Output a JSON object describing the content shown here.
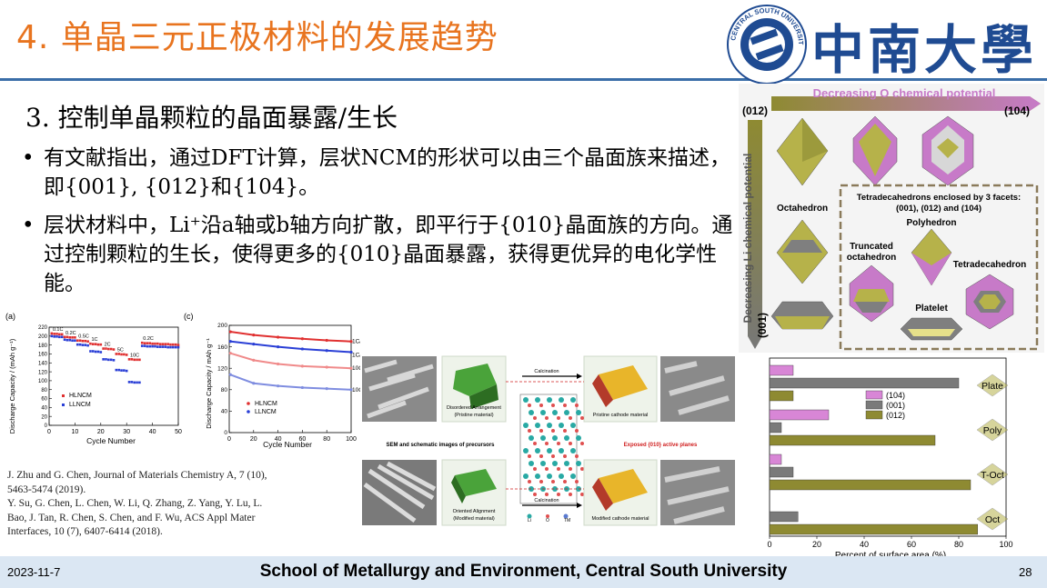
{
  "slide": {
    "title": "4. 单晶三元正极材料的发展趋势",
    "university_logo_text": "CENTRAL SOUTH UNIVERSITY",
    "university_name": "中南大學",
    "subtitle": "3. 控制单晶颗粒的晶面暴露/生长",
    "bullets": [
      "有文献指出，通过DFT计算，层状NCM的形状可以由三个晶面族来描述，即{001}, {012}和{104}。",
      "层状材料中，Li⁺沿a轴或b轴方向扩散，即平行于{010}晶面族的方向。通过控制颗粒的生长，使得更多的{010}晶面暴露，获得更优异的电化学性能。"
    ],
    "references": [
      "J. Zhu and G. Chen, Journal of Materials Chemistry A, 7 (10), 5463-5474 (2019).",
      "Y. Su, G. Chen, L. Chen, W. Li, Q. Zhang, Z. Yang, Y. Lu, L. Bao, J. Tan, R. Chen, S. Chen, and F. Wu, ACS Appl Mater Interfaces, 10 (7), 6407-6414 (2018)."
    ]
  },
  "footer": {
    "date": "2023-11-7",
    "school": "School of Metallurgy and Environment, Central South University",
    "page": "28"
  },
  "figure_shapes": {
    "top_arrow_label": "Decreasing O chemical potential",
    "left_arrow_label": "Decreasing Li chemical potential",
    "corner_012": "(012)",
    "corner_104": "(104)",
    "corner_001": "(001)",
    "octahedron": "Octahedron",
    "box_title_1": "Tetradecahedrons enclosed by 3 facets:",
    "box_title_2": "(001), (012) and (104)",
    "polyhedron": "Polyhedron",
    "truncated_1": "Truncated",
    "truncated_2": "octahedron",
    "tetradecahedron": "Tetradecahedron",
    "platelet": "Platelet",
    "colors": {
      "facet_012": "#9c9a3c",
      "facet_001": "#7f7f7f",
      "facet_104": "#c77ac8"
    }
  },
  "figure_process": {
    "disordered": "Disordered Arrangement",
    "pristine_material": "(Pristine material)",
    "calcination_1": "Calcination",
    "pristine_cathode": "Pristine cathode material",
    "sem_caption": "SEM and schematic images of precursors",
    "exposed_planes": "Exposed {010} active planes",
    "oriented": "Oriented Alignment",
    "modified_material": "(Modified material)",
    "calcination_2": "Calcination",
    "modified_cathode": "Modified cathode material",
    "atoms": [
      "Li",
      "O",
      "TM"
    ]
  },
  "chart_data": [
    {
      "type": "scatter",
      "panel": "(a)",
      "xlabel": "Cycle Number",
      "ylabel": "Discharge Capacity / (mAh g⁻¹)",
      "xlim": [
        0,
        50
      ],
      "ylim": [
        0,
        220
      ],
      "xticks": [
        "0",
        "10",
        "20",
        "30",
        "40",
        "50"
      ],
      "yticks": [
        "0",
        "20",
        "40",
        "60",
        "80",
        "100",
        "120",
        "140",
        "160",
        "180",
        "200",
        "220"
      ],
      "rate_labels": [
        "0.1C",
        "0.2C",
        "0.5C",
        "1C",
        "2C",
        "5C",
        "10C",
        "0.2C"
      ],
      "legend": [
        "HLNCM",
        "LLNCM"
      ],
      "series": [
        {
          "name": "HLNCM",
          "color": "#e03030",
          "x": [
            1,
            2,
            3,
            4,
            5,
            6,
            7,
            8,
            9,
            10,
            11,
            12,
            13,
            14,
            15,
            16,
            17,
            18,
            19,
            20,
            21,
            22,
            23,
            24,
            25,
            26,
            27,
            28,
            29,
            30,
            31,
            32,
            33,
            34,
            35,
            36,
            37,
            38,
            39,
            40,
            41,
            42,
            43,
            44,
            45,
            46,
            47,
            48,
            49,
            50
          ],
          "y": [
            206,
            205,
            205,
            204,
            204,
            198,
            198,
            197,
            197,
            197,
            190,
            190,
            189,
            189,
            188,
            183,
            182,
            182,
            181,
            181,
            172,
            172,
            171,
            171,
            170,
            160,
            160,
            159,
            159,
            158,
            148,
            148,
            147,
            147,
            147,
            185,
            184,
            184,
            184,
            183,
            183,
            183,
            182,
            182,
            182,
            182,
            181,
            181,
            181,
            180
          ]
        },
        {
          "name": "LLNCM",
          "color": "#2a3fd6",
          "x": [
            1,
            2,
            3,
            4,
            5,
            6,
            7,
            8,
            9,
            10,
            11,
            12,
            13,
            14,
            15,
            16,
            17,
            18,
            19,
            20,
            21,
            22,
            23,
            24,
            25,
            26,
            27,
            28,
            29,
            30,
            31,
            32,
            33,
            34,
            35,
            36,
            37,
            38,
            39,
            40,
            41,
            42,
            43,
            44,
            45,
            46,
            47,
            48,
            49,
            50
          ],
          "y": [
            200,
            199,
            199,
            198,
            198,
            192,
            191,
            191,
            190,
            190,
            181,
            181,
            180,
            180,
            179,
            166,
            166,
            165,
            165,
            164,
            148,
            148,
            147,
            147,
            146,
            124,
            124,
            123,
            123,
            122,
            97,
            97,
            96,
            96,
            96,
            178,
            178,
            177,
            177,
            177,
            177,
            176,
            176,
            176,
            176,
            175,
            175,
            175,
            175,
            175
          ]
        }
      ]
    },
    {
      "type": "line",
      "panel": "(c)",
      "xlabel": "Cycle Number",
      "ylabel": "Discharge Capacity / mAh g⁻¹",
      "xlim": [
        0,
        100
      ],
      "ylim": [
        0,
        200
      ],
      "xticks": [
        "0",
        "20",
        "40",
        "60",
        "80",
        "100"
      ],
      "yticks": [
        "0",
        "40",
        "80",
        "120",
        "160",
        "200"
      ],
      "legend": [
        "HLNCM",
        "LLNCM"
      ],
      "series": [
        {
          "name": "1C/1C",
          "color": "#e03030",
          "x": [
            1,
            20,
            40,
            60,
            80,
            100
          ],
          "y": [
            188,
            182,
            178,
            175,
            172,
            170
          ]
        },
        {
          "name": "1C/1C",
          "color": "#2a3fd6",
          "x": [
            1,
            20,
            40,
            60,
            80,
            100
          ],
          "y": [
            170,
            165,
            160,
            156,
            153,
            150
          ]
        },
        {
          "name": "10C/10C",
          "color": "#f08a8a",
          "x": [
            1,
            20,
            40,
            60,
            80,
            100
          ],
          "y": [
            148,
            135,
            128,
            124,
            122,
            120
          ]
        },
        {
          "name": "10C/10C",
          "color": "#7f8de0",
          "x": [
            1,
            20,
            40,
            60,
            80,
            100
          ],
          "y": [
            108,
            92,
            87,
            84,
            82,
            80
          ]
        }
      ]
    },
    {
      "type": "bar",
      "orientation": "horizontal",
      "xlabel": "Percent of surface area (%)",
      "xlim": [
        0,
        100
      ],
      "xticks": [
        "0",
        "20",
        "40",
        "60",
        "80",
        "100"
      ],
      "categories": [
        "Plate",
        "Poly",
        "T-Oct",
        "Oct"
      ],
      "legend": [
        "(104)",
        "(001)",
        "(012)"
      ],
      "series": [
        {
          "name": "(104)",
          "color": "#d886d6",
          "values": [
            10,
            25,
            5,
            0
          ]
        },
        {
          "name": "(001)",
          "color": "#7a7a7a",
          "values": [
            80,
            5,
            10,
            12
          ]
        },
        {
          "name": "(012)",
          "color": "#8e8a32",
          "values": [
            10,
            70,
            85,
            88
          ]
        }
      ]
    }
  ]
}
